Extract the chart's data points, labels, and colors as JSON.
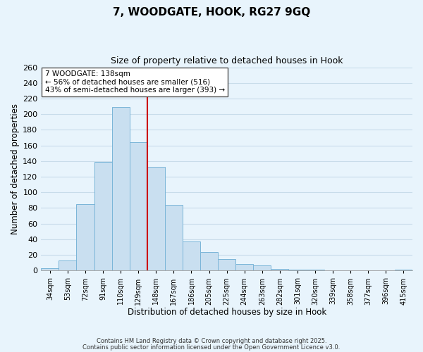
{
  "title": "7, WOODGATE, HOOK, RG27 9GQ",
  "subtitle": "Size of property relative to detached houses in Hook",
  "xlabel": "Distribution of detached houses by size in Hook",
  "ylabel": "Number of detached properties",
  "bar_labels": [
    "34sqm",
    "53sqm",
    "72sqm",
    "91sqm",
    "110sqm",
    "129sqm",
    "148sqm",
    "167sqm",
    "186sqm",
    "205sqm",
    "225sqm",
    "244sqm",
    "263sqm",
    "282sqm",
    "301sqm",
    "320sqm",
    "339sqm",
    "358sqm",
    "377sqm",
    "396sqm",
    "415sqm"
  ],
  "bar_values": [
    3,
    13,
    85,
    139,
    209,
    164,
    133,
    84,
    37,
    24,
    15,
    8,
    7,
    2,
    1,
    1,
    0,
    0,
    0,
    0,
    1
  ],
  "bar_color": "#c9dff0",
  "bar_edge_color": "#7ab5d8",
  "vline_color": "#cc0000",
  "annotation_title": "7 WOODGATE: 138sqm",
  "annotation_line1": "← 56% of detached houses are smaller (516)",
  "annotation_line2": "43% of semi-detached houses are larger (393) →",
  "annotation_box_color": "#ffffff",
  "annotation_box_edge": "#555555",
  "ylim": [
    0,
    260
  ],
  "yticks": [
    0,
    20,
    40,
    60,
    80,
    100,
    120,
    140,
    160,
    180,
    200,
    220,
    240,
    260
  ],
  "grid_color": "#c8dcea",
  "background_color": "#e8f4fc",
  "footnote1": "Contains HM Land Registry data © Crown copyright and database right 2025.",
  "footnote2": "Contains public sector information licensed under the Open Government Licence v3.0."
}
